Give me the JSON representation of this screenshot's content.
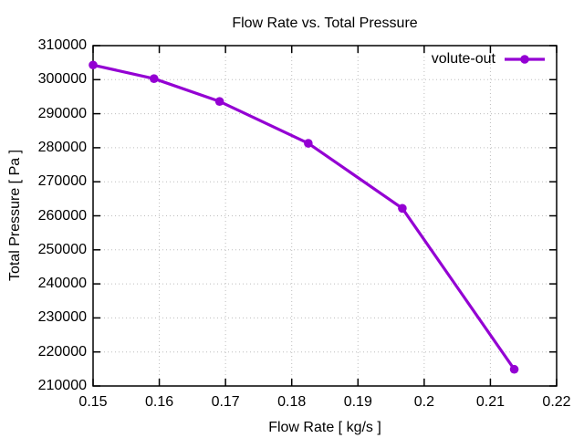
{
  "chart_data": {
    "type": "line",
    "title": "Flow Rate vs. Total Pressure",
    "xlabel": "Flow Rate [ kg/s ]",
    "ylabel": "Total Pressure [ Pa ]",
    "xlim": [
      0.15,
      0.22
    ],
    "ylim": [
      210000,
      310000
    ],
    "xticks": [
      0.15,
      0.16,
      0.17,
      0.18,
      0.19,
      0.2,
      0.21,
      0.22
    ],
    "yticks": [
      210000,
      220000,
      230000,
      240000,
      250000,
      260000,
      270000,
      280000,
      290000,
      300000,
      310000
    ],
    "grid": true,
    "legend_position": "top-right-inside",
    "series": [
      {
        "name": "volute-out",
        "color": "#9400d3",
        "marker": "filled-circle",
        "points": [
          [
            0.15,
            304300
          ],
          [
            0.1592,
            300300
          ],
          [
            0.1691,
            293600
          ],
          [
            0.1825,
            281300
          ],
          [
            0.1967,
            262200
          ],
          [
            0.2136,
            214900
          ]
        ]
      }
    ]
  },
  "colors": {
    "background": "#ffffff",
    "axis": "#000000",
    "grid": "#bdbdbd",
    "text": "#000000"
  }
}
